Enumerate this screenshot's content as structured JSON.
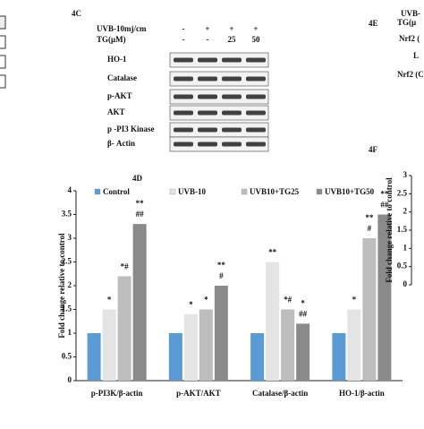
{
  "chart_data": [
    {
      "type": "bar",
      "title": "4D",
      "y_label": "Fold change relative to control",
      "categories": [
        "p-PI3K/β-actin",
        "p-AKT/AKT",
        "Catalase/β-actin",
        "HO-1/β-actin"
      ],
      "series": [
        {
          "name": "Control",
          "color": "#5b9bd5",
          "values": [
            1,
            1,
            1,
            1
          ],
          "significance": [
            null,
            null,
            null,
            null
          ]
        },
        {
          "name": "UVB-10",
          "color": "#e4e4e4",
          "values": [
            1.5,
            1.4,
            2.5,
            1.5
          ],
          "significance": [
            [
              "*"
            ],
            [
              "*"
            ],
            [
              "**"
            ],
            [
              "*"
            ]
          ]
        },
        {
          "name": "UVB10+TG25",
          "color": "#bdbdbd",
          "values": [
            2.2,
            1.5,
            1.5,
            3.0
          ],
          "significance": [
            [
              "*#"
            ],
            [
              "*"
            ],
            [
              "*#"
            ],
            [
              "**",
              "#"
            ]
          ]
        },
        {
          "name": "UVB10+TG50",
          "color": "#8a8a8a",
          "values": [
            3.3,
            2.0,
            1.2,
            3.5
          ],
          "significance": [
            [
              "**",
              "##"
            ],
            [
              "**",
              "#"
            ],
            [
              "*",
              "##"
            ],
            [
              "**",
              "##"
            ]
          ]
        }
      ],
      "ylim": [
        0,
        4
      ],
      "yticks": [
        0,
        0.5,
        1,
        1.5,
        2,
        2.5,
        3,
        3.5,
        4
      ],
      "legend": "top"
    },
    {
      "type": "bar",
      "title": "4F",
      "y_label": "Fold change relative to control",
      "ylim": [
        0,
        3
      ],
      "yticks": [
        0,
        0.5,
        1,
        1.5,
        2,
        2.5,
        3
      ]
    }
  ],
  "blot": {
    "title": "4C",
    "treatment_rows": [
      {
        "label": "UVB-10mj/cm",
        "lanes": [
          "-",
          "+",
          "+",
          "+"
        ]
      },
      {
        "label": "TG(μM)",
        "lanes": [
          "-",
          "-",
          "25",
          "50"
        ]
      }
    ],
    "bands": [
      "HO-1",
      "Catalase",
      "p-AKT",
      "AKT",
      "p -PI3 Kinase",
      "β- Actin"
    ]
  },
  "panel_4e": {
    "title": "4E",
    "labels": [
      "UVB-",
      "TG(μ",
      "Nrf2 (",
      "L",
      "Nrf2 (C"
    ]
  }
}
